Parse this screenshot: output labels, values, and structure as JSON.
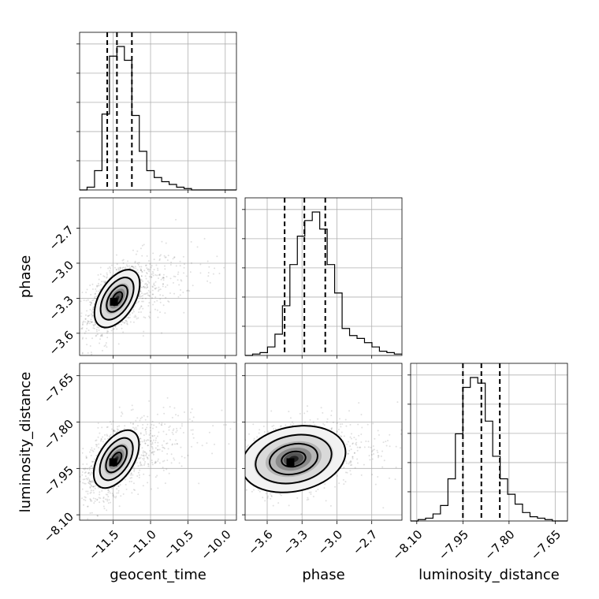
{
  "chart_data": {
    "type": "corner",
    "grid": true,
    "parameters": [
      {
        "name": "geocent_time",
        "label": "geocent_time",
        "range": [
          -11.95,
          -9.85
        ],
        "ticks": [
          "−11.5",
          "−11.0",
          "−10.5",
          "−10.0"
        ],
        "tick_values": [
          -11.5,
          -11.0,
          -10.5,
          -10.0
        ],
        "quantiles": [
          -11.58,
          -11.45,
          -11.25
        ]
      },
      {
        "name": "phase",
        "label": "phase",
        "range": [
          -3.79,
          -2.44
        ],
        "ticks": [
          "−3.6",
          "−3.3",
          "−3.0",
          "−2.7"
        ],
        "tick_values": [
          -3.6,
          -3.3,
          -3.0,
          -2.7
        ],
        "quantiles": [
          -3.45,
          -3.28,
          -3.1
        ]
      },
      {
        "name": "luminosity_distance",
        "label": "luminosity_distance",
        "range": [
          -8.12,
          -7.61
        ],
        "ticks": [
          "−8.10",
          "−7.95",
          "−7.80",
          "−7.65"
        ],
        "tick_values": [
          -8.1,
          -7.95,
          -7.8,
          -7.65
        ],
        "quantiles": [
          -7.95,
          -7.89,
          -7.83
        ]
      }
    ],
    "histograms": [
      {
        "param": "geocent_time",
        "counts": [
          0,
          2,
          14,
          55,
          97,
          104,
          94,
          54,
          28,
          14,
          9,
          6,
          4,
          2,
          1,
          0,
          0,
          0,
          0,
          0,
          0
        ]
      },
      {
        "param": "phase",
        "counts": [
          0,
          1,
          2,
          6,
          15,
          35,
          64,
          84,
          95,
          101,
          89,
          64,
          44,
          19,
          14,
          12,
          9,
          6,
          3,
          2,
          1
        ]
      },
      {
        "param": "luminosity_distance",
        "counts": [
          0,
          1,
          2,
          5,
          11,
          30,
          62,
          95,
          102,
          98,
          71,
          46,
          30,
          19,
          12,
          6,
          3,
          2,
          1,
          0,
          0
        ]
      }
    ],
    "joint_2d": [
      {
        "x": "geocent_time",
        "y": "phase",
        "peak": [
          -11.49,
          -3.33
        ]
      },
      {
        "x": "geocent_time",
        "y": "luminosity_distance",
        "peak": [
          -11.5,
          -7.93
        ]
      },
      {
        "x": "phase",
        "y": "luminosity_distance",
        "peak": [
          -3.4,
          -7.93
        ]
      }
    ]
  }
}
